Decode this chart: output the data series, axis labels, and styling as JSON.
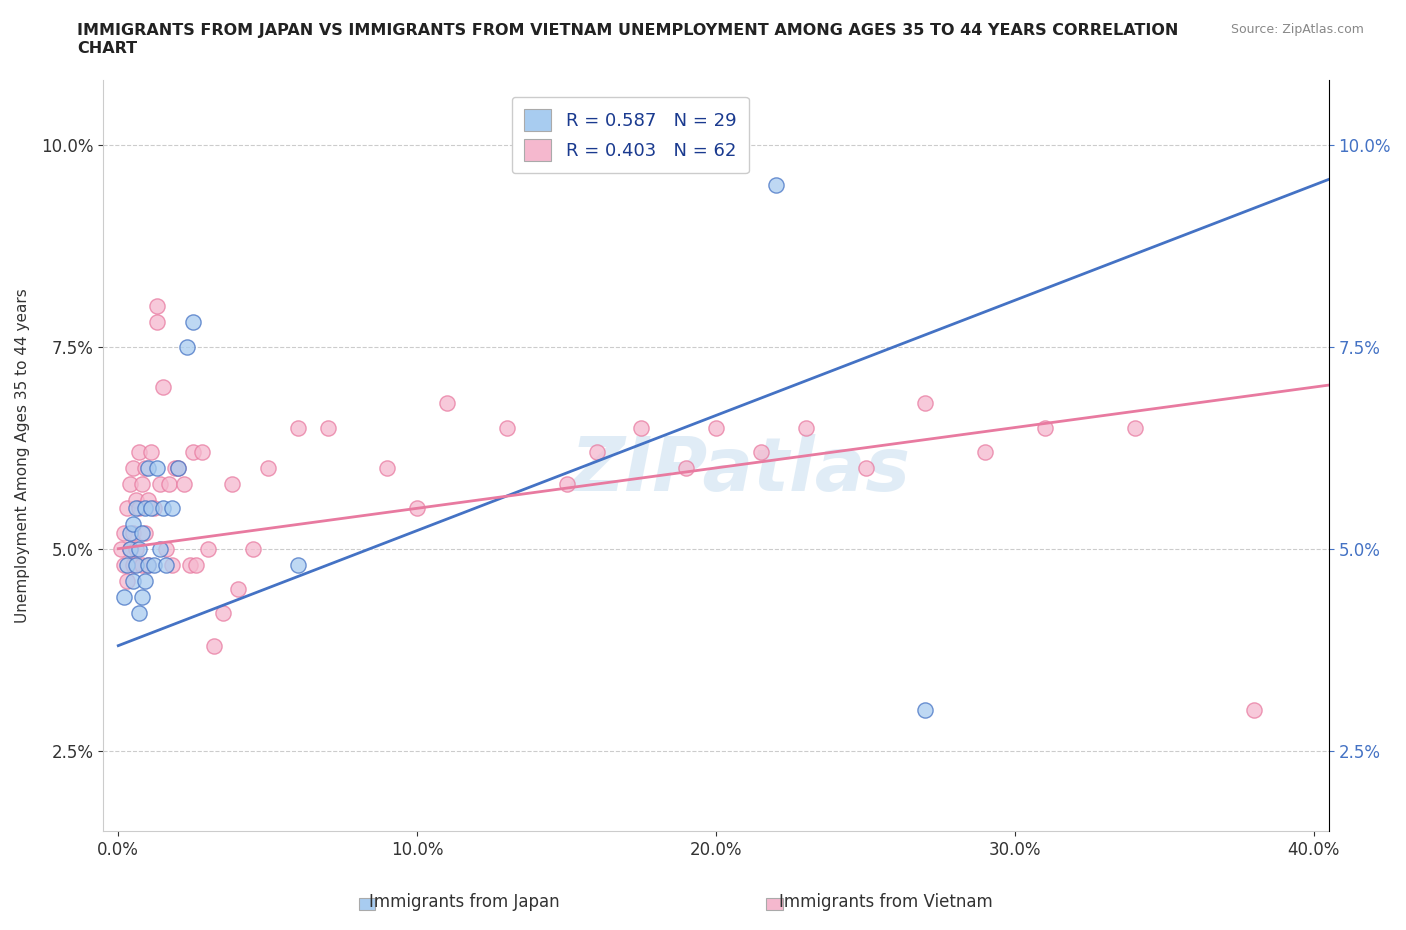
{
  "title": "IMMIGRANTS FROM JAPAN VS IMMIGRANTS FROM VIETNAM UNEMPLOYMENT AMONG AGES 35 TO 44 YEARS CORRELATION\nCHART",
  "source_text": "Source: ZipAtlas.com",
  "ylabel": "Unemployment Among Ages 35 to 44 years",
  "xlabel_japan": "Immigrants from Japan",
  "xlabel_vietnam": "Immigrants from Vietnam",
  "xlim": [
    -0.005,
    0.405
  ],
  "ylim": [
    0.015,
    0.108
  ],
  "yticks": [
    0.025,
    0.05,
    0.075,
    0.1
  ],
  "ytick_labels": [
    "2.5%",
    "5.0%",
    "7.5%",
    "10.0%"
  ],
  "xticks": [
    0.0,
    0.1,
    0.2,
    0.3,
    0.4
  ],
  "xtick_labels": [
    "0.0%",
    "10.0%",
    "20.0%",
    "30.0%",
    "40.0%"
  ],
  "color_japan": "#a8ccf0",
  "color_vietnam": "#f5b8ce",
  "line_color_japan": "#4472c4",
  "line_color_vietnam": "#e87aa0",
  "R_japan": 0.587,
  "N_japan": 29,
  "R_vietnam": 0.403,
  "N_vietnam": 62,
  "japan_x": [
    0.002,
    0.003,
    0.004,
    0.004,
    0.005,
    0.005,
    0.006,
    0.006,
    0.007,
    0.007,
    0.008,
    0.008,
    0.009,
    0.009,
    0.01,
    0.01,
    0.011,
    0.012,
    0.013,
    0.014,
    0.015,
    0.016,
    0.018,
    0.02,
    0.023,
    0.025,
    0.06,
    0.22,
    0.27
  ],
  "japan_y": [
    0.044,
    0.048,
    0.05,
    0.052,
    0.046,
    0.053,
    0.048,
    0.055,
    0.042,
    0.05,
    0.044,
    0.052,
    0.046,
    0.055,
    0.048,
    0.06,
    0.055,
    0.048,
    0.06,
    0.05,
    0.055,
    0.048,
    0.055,
    0.06,
    0.075,
    0.078,
    0.048,
    0.095,
    0.03
  ],
  "vietnam_x": [
    0.001,
    0.002,
    0.002,
    0.003,
    0.003,
    0.004,
    0.004,
    0.005,
    0.005,
    0.005,
    0.006,
    0.006,
    0.007,
    0.007,
    0.008,
    0.008,
    0.009,
    0.009,
    0.01,
    0.01,
    0.011,
    0.012,
    0.013,
    0.013,
    0.014,
    0.015,
    0.016,
    0.017,
    0.018,
    0.019,
    0.02,
    0.022,
    0.024,
    0.025,
    0.026,
    0.028,
    0.03,
    0.032,
    0.035,
    0.038,
    0.04,
    0.045,
    0.05,
    0.06,
    0.07,
    0.09,
    0.1,
    0.11,
    0.13,
    0.15,
    0.16,
    0.175,
    0.19,
    0.2,
    0.215,
    0.23,
    0.25,
    0.27,
    0.29,
    0.31,
    0.34,
    0.38
  ],
  "vietnam_y": [
    0.05,
    0.048,
    0.052,
    0.046,
    0.055,
    0.05,
    0.058,
    0.048,
    0.052,
    0.06,
    0.05,
    0.056,
    0.055,
    0.062,
    0.048,
    0.058,
    0.052,
    0.06,
    0.048,
    0.056,
    0.062,
    0.055,
    0.078,
    0.08,
    0.058,
    0.07,
    0.05,
    0.058,
    0.048,
    0.06,
    0.06,
    0.058,
    0.048,
    0.062,
    0.048,
    0.062,
    0.05,
    0.038,
    0.042,
    0.058,
    0.045,
    0.05,
    0.06,
    0.065,
    0.065,
    0.06,
    0.055,
    0.068,
    0.065,
    0.058,
    0.062,
    0.065,
    0.06,
    0.065,
    0.062,
    0.065,
    0.06,
    0.068,
    0.062,
    0.065,
    0.065,
    0.03
  ]
}
